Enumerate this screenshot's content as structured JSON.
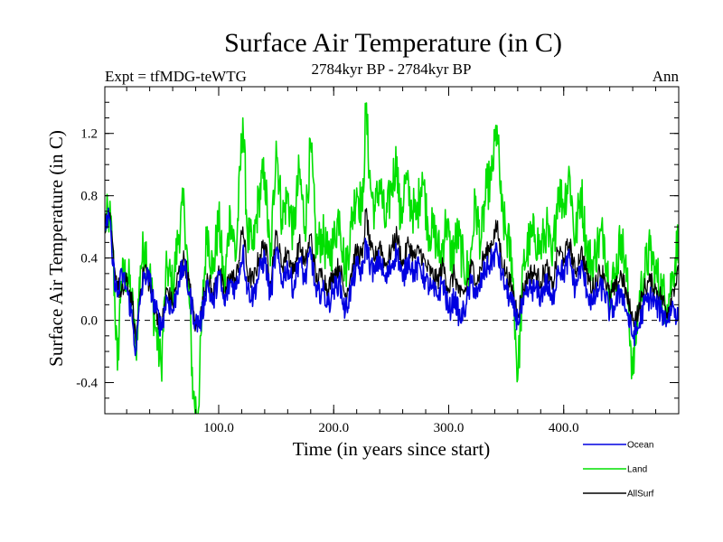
{
  "chart_data": {
    "type": "line",
    "title": "Surface Air Temperature (in C)",
    "subtitle_left": "Expt = tfMDG-teWTG",
    "subtitle_center": "2784kyr BP - 2784kyr BP",
    "subtitle_right": "Ann",
    "xlabel": "Time (in years since start)",
    "ylabel": "Surface Air Temperature (in C)",
    "xlim": [
      1,
      500
    ],
    "ylim": [
      -0.6,
      1.5
    ],
    "xticks": [
      100,
      200,
      300,
      400
    ],
    "xtick_labels": [
      "100.0",
      "200.0",
      "300.0",
      "400.0"
    ],
    "yticks": [
      -0.4,
      0.0,
      0.4,
      0.8,
      1.2
    ],
    "ytick_labels": [
      "-0.4",
      "0.0",
      "0.4",
      "0.8",
      "1.2"
    ],
    "reference_line": 0.0,
    "series": [
      {
        "name": "Land",
        "color": "#00e000",
        "keypoints": [
          [
            1,
            0.62
          ],
          [
            5,
            0.68
          ],
          [
            8,
            0.45
          ],
          [
            12,
            -0.32
          ],
          [
            15,
            0.25
          ],
          [
            20,
            0.3
          ],
          [
            24,
            0.18
          ],
          [
            28,
            -0.2
          ],
          [
            32,
            0.35
          ],
          [
            36,
            0.5
          ],
          [
            40,
            0.3
          ],
          [
            45,
            -0.05
          ],
          [
            50,
            -0.3
          ],
          [
            55,
            0.35
          ],
          [
            60,
            0.2
          ],
          [
            65,
            0.55
          ],
          [
            70,
            0.75
          ],
          [
            74,
            0.2
          ],
          [
            78,
            -0.5
          ],
          [
            82,
            -0.6
          ],
          [
            86,
            0.1
          ],
          [
            90,
            0.6
          ],
          [
            95,
            0.3
          ],
          [
            100,
            0.65
          ],
          [
            105,
            0.2
          ],
          [
            110,
            0.7
          ],
          [
            115,
            0.4
          ],
          [
            121,
            1.3
          ],
          [
            125,
            0.55
          ],
          [
            130,
            0.45
          ],
          [
            135,
            0.8
          ],
          [
            140,
            0.95
          ],
          [
            145,
            0.35
          ],
          [
            150,
            1.15
          ],
          [
            155,
            0.65
          ],
          [
            160,
            0.8
          ],
          [
            165,
            0.55
          ],
          [
            170,
            0.95
          ],
          [
            175,
            0.6
          ],
          [
            180,
            1.12
          ],
          [
            185,
            0.45
          ],
          [
            190,
            0.55
          ],
          [
            195,
            0.4
          ],
          [
            200,
            0.5
          ],
          [
            205,
            0.7
          ],
          [
            210,
            0.3
          ],
          [
            215,
            0.6
          ],
          [
            220,
            0.85
          ],
          [
            225,
            0.7
          ],
          [
            228,
            1.37
          ],
          [
            232,
            0.85
          ],
          [
            236,
            0.7
          ],
          [
            240,
            0.9
          ],
          [
            245,
            0.6
          ],
          [
            250,
            0.85
          ],
          [
            255,
            1.05
          ],
          [
            258,
            0.6
          ],
          [
            262,
            0.9
          ],
          [
            267,
            0.75
          ],
          [
            272,
            0.65
          ],
          [
            277,
            0.95
          ],
          [
            282,
            0.6
          ],
          [
            288,
            0.55
          ],
          [
            293,
            0.4
          ],
          [
            298,
            0.65
          ],
          [
            302,
            0.4
          ],
          [
            308,
            0.55
          ],
          [
            313,
            0.35
          ],
          [
            318,
            0.3
          ],
          [
            323,
            0.75
          ],
          [
            328,
            0.5
          ],
          [
            333,
            0.85
          ],
          [
            337,
            0.9
          ],
          [
            342,
            1.25
          ],
          [
            346,
            0.7
          ],
          [
            350,
            0.55
          ],
          [
            355,
            0.4
          ],
          [
            360,
            -0.38
          ],
          [
            365,
            0.35
          ],
          [
            370,
            0.5
          ],
          [
            375,
            0.55
          ],
          [
            380,
            0.45
          ],
          [
            385,
            0.6
          ],
          [
            390,
            0.35
          ],
          [
            395,
            0.85
          ],
          [
            400,
            0.75
          ],
          [
            405,
            0.95
          ],
          [
            410,
            0.5
          ],
          [
            415,
            0.85
          ],
          [
            420,
            0.45
          ],
          [
            425,
            0.35
          ],
          [
            430,
            0.5
          ],
          [
            435,
            0.55
          ],
          [
            440,
            0.2
          ],
          [
            445,
            0.3
          ],
          [
            450,
            0.55
          ],
          [
            455,
            0.25
          ],
          [
            460,
            -0.35
          ],
          [
            465,
            0.1
          ],
          [
            470,
            0.3
          ],
          [
            475,
            0.45
          ],
          [
            480,
            0.3
          ],
          [
            485,
            0.2
          ],
          [
            490,
            0.1
          ],
          [
            495,
            0.3
          ],
          [
            500,
            0.55
          ]
        ]
      },
      {
        "name": "AllSurf",
        "color": "#000000",
        "keypoints": [
          [
            1,
            0.62
          ],
          [
            5,
            0.66
          ],
          [
            10,
            0.3
          ],
          [
            15,
            0.15
          ],
          [
            20,
            0.25
          ],
          [
            25,
            0.1
          ],
          [
            28,
            -0.15
          ],
          [
            32,
            0.2
          ],
          [
            36,
            0.35
          ],
          [
            42,
            0.15
          ],
          [
            50,
            -0.05
          ],
          [
            55,
            0.2
          ],
          [
            60,
            0.1
          ],
          [
            65,
            0.3
          ],
          [
            70,
            0.4
          ],
          [
            75,
            0.2
          ],
          [
            80,
            -0.05
          ],
          [
            85,
            0.05
          ],
          [
            90,
            0.3
          ],
          [
            95,
            0.15
          ],
          [
            100,
            0.35
          ],
          [
            105,
            0.15
          ],
          [
            110,
            0.3
          ],
          [
            115,
            0.25
          ],
          [
            121,
            0.6
          ],
          [
            125,
            0.3
          ],
          [
            130,
            0.25
          ],
          [
            135,
            0.4
          ],
          [
            140,
            0.5
          ],
          [
            145,
            0.25
          ],
          [
            150,
            0.55
          ],
          [
            155,
            0.35
          ],
          [
            160,
            0.45
          ],
          [
            165,
            0.3
          ],
          [
            170,
            0.5
          ],
          [
            175,
            0.35
          ],
          [
            180,
            0.55
          ],
          [
            185,
            0.25
          ],
          [
            190,
            0.3
          ],
          [
            195,
            0.2
          ],
          [
            200,
            0.3
          ],
          [
            205,
            0.35
          ],
          [
            210,
            0.15
          ],
          [
            215,
            0.3
          ],
          [
            220,
            0.45
          ],
          [
            225,
            0.4
          ],
          [
            228,
            0.7
          ],
          [
            232,
            0.45
          ],
          [
            236,
            0.4
          ],
          [
            240,
            0.5
          ],
          [
            245,
            0.35
          ],
          [
            250,
            0.45
          ],
          [
            255,
            0.55
          ],
          [
            260,
            0.35
          ],
          [
            265,
            0.5
          ],
          [
            270,
            0.4
          ],
          [
            275,
            0.45
          ],
          [
            280,
            0.35
          ],
          [
            285,
            0.3
          ],
          [
            290,
            0.25
          ],
          [
            295,
            0.35
          ],
          [
            300,
            0.2
          ],
          [
            305,
            0.3
          ],
          [
            310,
            0.15
          ],
          [
            315,
            0.2
          ],
          [
            320,
            0.35
          ],
          [
            325,
            0.25
          ],
          [
            330,
            0.4
          ],
          [
            335,
            0.45
          ],
          [
            342,
            0.6
          ],
          [
            346,
            0.4
          ],
          [
            350,
            0.3
          ],
          [
            355,
            0.2
          ],
          [
            360,
            0.05
          ],
          [
            365,
            0.2
          ],
          [
            370,
            0.3
          ],
          [
            375,
            0.3
          ],
          [
            380,
            0.25
          ],
          [
            385,
            0.35
          ],
          [
            390,
            0.2
          ],
          [
            395,
            0.45
          ],
          [
            400,
            0.4
          ],
          [
            405,
            0.5
          ],
          [
            410,
            0.3
          ],
          [
            415,
            0.45
          ],
          [
            420,
            0.3
          ],
          [
            425,
            0.2
          ],
          [
            430,
            0.3
          ],
          [
            435,
            0.3
          ],
          [
            440,
            0.15
          ],
          [
            445,
            0.2
          ],
          [
            450,
            0.3
          ],
          [
            455,
            0.15
          ],
          [
            460,
            0.0
          ],
          [
            465,
            0.05
          ],
          [
            470,
            0.2
          ],
          [
            475,
            0.25
          ],
          [
            480,
            0.2
          ],
          [
            485,
            0.15
          ],
          [
            490,
            0.05
          ],
          [
            495,
            0.2
          ],
          [
            500,
            0.3
          ]
        ]
      },
      {
        "name": "Ocean",
        "color": "#0000e0",
        "keypoints": [
          [
            1,
            0.62
          ],
          [
            5,
            0.66
          ],
          [
            8,
            0.35
          ],
          [
            12,
            0.15
          ],
          [
            16,
            0.3
          ],
          [
            20,
            0.2
          ],
          [
            24,
            0.05
          ],
          [
            28,
            -0.2
          ],
          [
            32,
            0.15
          ],
          [
            36,
            0.3
          ],
          [
            40,
            0.25
          ],
          [
            44,
            0.1
          ],
          [
            50,
            -0.05
          ],
          [
            55,
            0.15
          ],
          [
            60,
            0.05
          ],
          [
            65,
            0.25
          ],
          [
            70,
            0.35
          ],
          [
            75,
            0.15
          ],
          [
            80,
            -0.02
          ],
          [
            85,
            0.0
          ],
          [
            90,
            0.25
          ],
          [
            95,
            0.1
          ],
          [
            100,
            0.3
          ],
          [
            105,
            0.1
          ],
          [
            110,
            0.25
          ],
          [
            115,
            0.2
          ],
          [
            121,
            0.45
          ],
          [
            125,
            0.2
          ],
          [
            130,
            0.15
          ],
          [
            135,
            0.3
          ],
          [
            140,
            0.4
          ],
          [
            145,
            0.15
          ],
          [
            150,
            0.45
          ],
          [
            155,
            0.25
          ],
          [
            160,
            0.35
          ],
          [
            165,
            0.2
          ],
          [
            170,
            0.4
          ],
          [
            175,
            0.25
          ],
          [
            180,
            0.45
          ],
          [
            185,
            0.15
          ],
          [
            190,
            0.2
          ],
          [
            195,
            0.1
          ],
          [
            200,
            0.2
          ],
          [
            205,
            0.25
          ],
          [
            210,
            0.05
          ],
          [
            215,
            0.2
          ],
          [
            220,
            0.35
          ],
          [
            225,
            0.3
          ],
          [
            228,
            0.5
          ],
          [
            232,
            0.35
          ],
          [
            236,
            0.3
          ],
          [
            240,
            0.4
          ],
          [
            245,
            0.25
          ],
          [
            250,
            0.35
          ],
          [
            255,
            0.45
          ],
          [
            260,
            0.25
          ],
          [
            265,
            0.4
          ],
          [
            270,
            0.3
          ],
          [
            275,
            0.35
          ],
          [
            280,
            0.25
          ],
          [
            285,
            0.2
          ],
          [
            290,
            0.15
          ],
          [
            295,
            0.25
          ],
          [
            300,
            0.05
          ],
          [
            305,
            0.15
          ],
          [
            310,
            0.0
          ],
          [
            315,
            0.1
          ],
          [
            320,
            0.25
          ],
          [
            325,
            0.15
          ],
          [
            330,
            0.3
          ],
          [
            335,
            0.35
          ],
          [
            342,
            0.45
          ],
          [
            346,
            0.3
          ],
          [
            350,
            0.2
          ],
          [
            355,
            0.1
          ],
          [
            360,
            0.0
          ],
          [
            365,
            0.1
          ],
          [
            370,
            0.2
          ],
          [
            375,
            0.2
          ],
          [
            380,
            0.15
          ],
          [
            385,
            0.25
          ],
          [
            390,
            0.1
          ],
          [
            395,
            0.35
          ],
          [
            400,
            0.3
          ],
          [
            405,
            0.4
          ],
          [
            410,
            0.2
          ],
          [
            415,
            0.35
          ],
          [
            420,
            0.2
          ],
          [
            425,
            0.1
          ],
          [
            430,
            0.2
          ],
          [
            435,
            0.2
          ],
          [
            440,
            0.05
          ],
          [
            445,
            0.1
          ],
          [
            450,
            0.2
          ],
          [
            455,
            0.05
          ],
          [
            460,
            -0.1
          ],
          [
            465,
            -0.05
          ],
          [
            470,
            0.1
          ],
          [
            475,
            0.15
          ],
          [
            480,
            0.1
          ],
          [
            485,
            0.05
          ],
          [
            490,
            0.0
          ],
          [
            495,
            0.1
          ],
          [
            500,
            0.0
          ]
        ]
      }
    ],
    "legend": [
      {
        "name": "Ocean",
        "color": "#0000e0"
      },
      {
        "name": "Land",
        "color": "#00e000"
      },
      {
        "name": "AllSurf",
        "color": "#000000"
      }
    ]
  }
}
